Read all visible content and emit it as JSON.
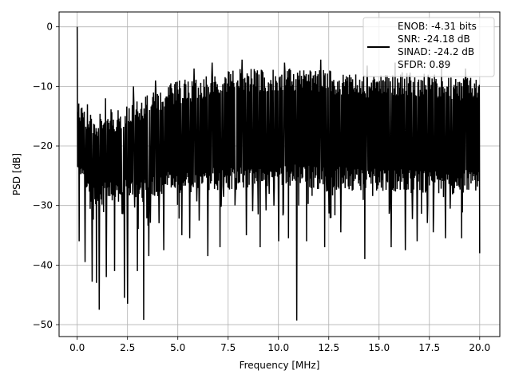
{
  "chart_data": {
    "type": "line",
    "title": "",
    "xlabel": "Frequency [MHz]",
    "ylabel": "PSD [dB]",
    "xlim": [
      -0.9,
      21.0
    ],
    "ylim": [
      -52.0,
      2.5
    ],
    "x_ticks": [
      0.0,
      2.5,
      5.0,
      7.5,
      10.0,
      12.5,
      15.0,
      17.5,
      20.0
    ],
    "x_tick_labels": [
      "0.0",
      "2.5",
      "5.0",
      "7.5",
      "10.0",
      "12.5",
      "15.0",
      "17.5",
      "20.0"
    ],
    "y_ticks": [
      0,
      -10,
      -20,
      -30,
      -40,
      -50
    ],
    "y_tick_labels": [
      "0",
      "−10",
      "−20",
      "−30",
      "−40",
      "−50"
    ],
    "grid": true,
    "legend_position": "top-right",
    "line_color": "#000000",
    "series": [
      {
        "name": "ENOB: -4.31 bits\nSNR: -24.18 dB\nSINAD: -24.2 dB\nSFDR: 0.89",
        "upper_envelope": {
          "x": [
            0.0,
            0.0,
            0.05,
            0.3,
            0.8,
            1.5,
            2.5,
            3.5,
            5.0,
            6.5,
            8.0,
            10.0,
            12.0,
            14.0,
            16.0,
            18.0,
            19.5,
            20.0
          ],
          "y": [
            0.0,
            -11.0,
            -12.0,
            -13.5,
            -14.5,
            -14.0,
            -13.0,
            -11.0,
            -9.0,
            -8.0,
            -7.0,
            -7.0,
            -7.0,
            -8.0,
            -7.5,
            -8.0,
            -8.5,
            -9.0
          ]
        },
        "lower_envelope": {
          "x": [
            0.0,
            0.5,
            1.0,
            2.0,
            3.0,
            5.0,
            7.0,
            9.0,
            11.0,
            13.0,
            15.0,
            17.0,
            19.0,
            20.0
          ],
          "y": [
            -26.0,
            -29.0,
            -30.0,
            -29.5,
            -29.0,
            -28.0,
            -27.5,
            -27.0,
            -27.0,
            -27.5,
            -27.5,
            -28.0,
            -28.0,
            -28.0
          ]
        },
        "dips": {
          "x": [
            0.1,
            0.4,
            0.75,
            0.95,
            1.1,
            1.45,
            1.85,
            2.35,
            2.5,
            3.0,
            3.3,
            3.55,
            4.3,
            5.2,
            5.6,
            6.5,
            7.1,
            8.4,
            9.1,
            10.0,
            10.5,
            10.9,
            11.4,
            12.3,
            13.1,
            14.3,
            15.6,
            16.3,
            16.9,
            17.7,
            18.3,
            19.1,
            20.0
          ],
          "y": [
            -36.0,
            -39.5,
            -42.8,
            -43.0,
            -47.5,
            -42.0,
            -41.0,
            -45.5,
            -46.5,
            -41.0,
            -49.2,
            -38.5,
            -37.5,
            -35.0,
            -35.5,
            -38.5,
            -37.0,
            -35.0,
            -37.0,
            -36.0,
            -35.5,
            -49.3,
            -36.0,
            -37.0,
            -34.5,
            -39.0,
            -37.0,
            -37.5,
            -36.0,
            -34.5,
            -35.5,
            -35.5,
            -38.0
          ]
        },
        "peaks": {
          "x": [
            0.0,
            0.5,
            1.4,
            2.8,
            3.9,
            5.8,
            6.7,
            8.2,
            10.3,
            12.1,
            14.4,
            15.8,
            18.1,
            19.3
          ],
          "y": [
            0.0,
            -13.0,
            -12.0,
            -10.0,
            -9.0,
            -7.0,
            -6.0,
            -5.5,
            -6.0,
            -5.5,
            -6.5,
            -6.0,
            -6.5,
            -7.0
          ]
        },
        "sample_count": 1024
      }
    ]
  }
}
